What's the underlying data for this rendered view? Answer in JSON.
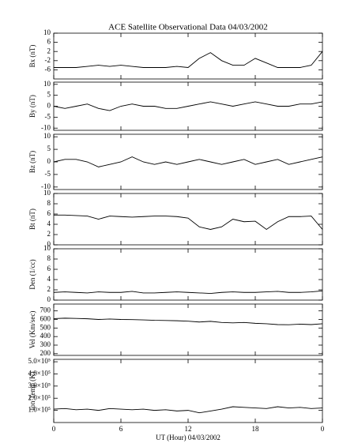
{
  "chart_data": [
    {
      "type": "line",
      "title": "ACE Satellite Observational Data   04/03/2002",
      "ylabel": "Bx (nT)",
      "color": "#000",
      "x": [
        0,
        1,
        2,
        3,
        4,
        5,
        6,
        7,
        8,
        9,
        10,
        11,
        12,
        13,
        14,
        15,
        16,
        17,
        18,
        19,
        20,
        21,
        22,
        23,
        24
      ],
      "values": [
        -5,
        -5,
        -5,
        -4.5,
        -4,
        -4.5,
        -4,
        -4.5,
        -5,
        -5,
        -5,
        -4.5,
        -5,
        -1,
        1.5,
        -2,
        -4,
        -4,
        -1,
        -3,
        -5,
        -5,
        -5,
        -4,
        2
      ],
      "xlim": [
        0,
        24
      ],
      "xticks": [
        0,
        6,
        12,
        18,
        {
          "value": 24,
          "label": "0"
        }
      ],
      "ylim": [
        -10,
        10
      ],
      "yticks": [
        10,
        6,
        2,
        -2,
        -6
      ]
    },
    {
      "type": "line",
      "ylabel": "By (nT)",
      "color": "#000",
      "x": [
        0,
        1,
        2,
        3,
        4,
        5,
        6,
        7,
        8,
        9,
        10,
        11,
        12,
        13,
        14,
        15,
        16,
        17,
        18,
        19,
        20,
        21,
        22,
        23,
        24
      ],
      "values": [
        0,
        -1,
        0,
        1,
        -1,
        -2,
        0,
        1,
        0,
        0,
        -1,
        -1,
        0,
        1,
        2,
        1,
        0,
        1,
        2,
        1,
        0,
        0,
        1,
        1,
        2
      ],
      "xlim": [
        0,
        24
      ],
      "xticks": [
        0,
        6,
        12,
        18,
        {
          "value": 24,
          "label": "0"
        }
      ],
      "ylim": [
        -11,
        11
      ],
      "yticks": [
        10,
        5,
        0,
        -5,
        -10
      ]
    },
    {
      "type": "line",
      "ylabel": "Bz (nT)",
      "color": "#000",
      "x": [
        0,
        1,
        2,
        3,
        4,
        5,
        6,
        7,
        8,
        9,
        10,
        11,
        12,
        13,
        14,
        15,
        16,
        17,
        18,
        19,
        20,
        21,
        22,
        23,
        24
      ],
      "values": [
        0,
        1,
        1,
        0,
        -2,
        -1,
        0,
        2,
        0,
        -1,
        0,
        -1,
        0,
        1,
        0,
        -1,
        0,
        1,
        -1,
        0,
        1,
        -1,
        0,
        1,
        2
      ],
      "xlim": [
        0,
        24
      ],
      "xticks": [
        0,
        6,
        12,
        18,
        {
          "value": 24,
          "label": "0"
        }
      ],
      "ylim": [
        -11,
        11
      ],
      "yticks": [
        10,
        5,
        0,
        -5,
        -10
      ]
    },
    {
      "type": "line",
      "ylabel": "Bt (nT)",
      "color": "#000",
      "x": [
        0,
        1,
        2,
        3,
        4,
        5,
        6,
        7,
        8,
        9,
        10,
        11,
        12,
        13,
        14,
        15,
        16,
        17,
        18,
        19,
        20,
        21,
        22,
        23,
        24
      ],
      "values": [
        5.8,
        5.8,
        5.7,
        5.6,
        5,
        5.6,
        5.5,
        5.4,
        5.5,
        5.6,
        5.6,
        5.5,
        5.2,
        3.5,
        3,
        3.5,
        5,
        4.5,
        4.6,
        3,
        4.5,
        5.5,
        5.5,
        5.6,
        3
      ],
      "xlim": [
        0,
        24
      ],
      "xticks": [
        0,
        6,
        12,
        18,
        {
          "value": 24,
          "label": "0"
        }
      ],
      "ylim": [
        0,
        10
      ],
      "yticks": [
        10,
        8,
        6,
        4,
        2,
        0
      ]
    },
    {
      "type": "line",
      "ylabel": "Den (1/cc)",
      "color": "#000",
      "x": [
        0,
        1,
        2,
        3,
        4,
        5,
        6,
        7,
        8,
        9,
        10,
        11,
        12,
        13,
        14,
        15,
        16,
        17,
        18,
        19,
        20,
        21,
        22,
        23,
        24
      ],
      "values": [
        1.5,
        1.6,
        1.5,
        1.4,
        1.6,
        1.5,
        1.5,
        1.7,
        1.4,
        1.4,
        1.5,
        1.6,
        1.5,
        1.4,
        1.3,
        1.5,
        1.6,
        1.5,
        1.5,
        1.6,
        1.7,
        1.5,
        1.5,
        1.6,
        1.8
      ],
      "xlim": [
        0,
        24
      ],
      "xticks": [
        0,
        6,
        12,
        18,
        {
          "value": 24,
          "label": "0"
        }
      ],
      "ylim": [
        0,
        10
      ],
      "yticks": [
        10,
        8,
        6,
        4,
        2,
        0
      ]
    },
    {
      "type": "line",
      "ylabel": "Vel (Km/sec)",
      "color": "#000",
      "x": [
        0,
        1,
        2,
        3,
        4,
        5,
        6,
        7,
        8,
        9,
        10,
        11,
        12,
        13,
        14,
        15,
        16,
        17,
        18,
        19,
        20,
        21,
        22,
        23,
        24
      ],
      "values": [
        610,
        615,
        612,
        608,
        600,
        605,
        600,
        598,
        595,
        590,
        588,
        585,
        580,
        570,
        578,
        565,
        560,
        565,
        555,
        550,
        540,
        538,
        545,
        540,
        550
      ],
      "xlim": [
        0,
        24
      ],
      "xticks": [
        0,
        6,
        12,
        18,
        {
          "value": 24,
          "label": "0"
        }
      ],
      "ylim": [
        180,
        780
      ],
      "yticks": [
        700,
        600,
        500,
        400,
        300,
        200
      ]
    },
    {
      "type": "line",
      "ylabel": "Ion Temp (K)",
      "xlabel": "UT (Hour)   04/03/2002",
      "color": "#000",
      "x": [
        0,
        1,
        2,
        3,
        4,
        5,
        6,
        7,
        8,
        9,
        10,
        11,
        12,
        13,
        14,
        15,
        16,
        17,
        18,
        19,
        20,
        21,
        22,
        23,
        24
      ],
      "values": [
        110000,
        115000,
        105000,
        110000,
        100000,
        115000,
        110000,
        105000,
        110000,
        100000,
        105000,
        95000,
        100000,
        80000,
        95000,
        110000,
        130000,
        125000,
        120000,
        115000,
        130000,
        120000,
        125000,
        115000,
        120000
      ],
      "xlim": [
        0,
        24
      ],
      "xticks": [
        0,
        6,
        12,
        18,
        {
          "value": 24,
          "label": "0"
        }
      ],
      "ylim": [
        0,
        520000
      ],
      "yticks": [
        {
          "value": 500000,
          "label": "5.0×10⁵"
        },
        {
          "value": 400000,
          "label": "4.0×10⁵"
        },
        {
          "value": 300000,
          "label": "3.0×10⁵"
        },
        {
          "value": 200000,
          "label": "2.0×10⁵"
        },
        {
          "value": 100000,
          "label": "1.0×10⁵"
        }
      ]
    }
  ]
}
